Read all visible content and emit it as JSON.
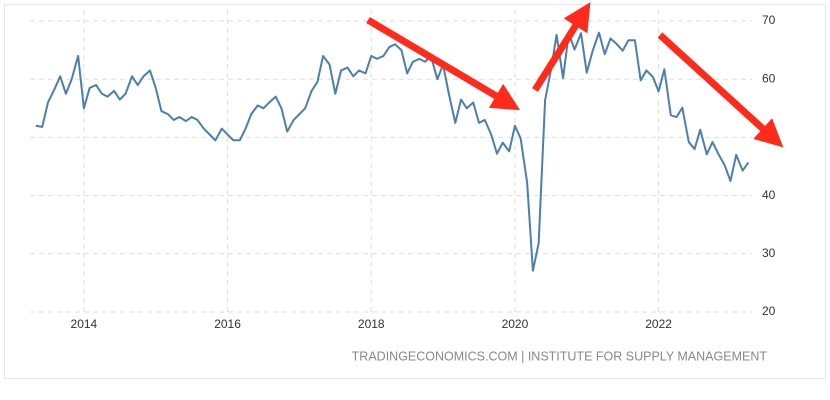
{
  "chart_data": {
    "type": "line",
    "source": "TRADINGECONOMICS.COM | INSTITUTE FOR SUPPLY MANAGEMENT",
    "x": [
      2013.33,
      2013.42,
      2013.5,
      2013.58,
      2013.67,
      2013.75,
      2013.83,
      2013.92,
      2014,
      2014.08,
      2014.17,
      2014.25,
      2014.33,
      2014.42,
      2014.5,
      2014.58,
      2014.67,
      2014.75,
      2014.83,
      2014.92,
      2015,
      2015.08,
      2015.17,
      2015.25,
      2015.33,
      2015.42,
      2015.5,
      2015.58,
      2015.67,
      2015.75,
      2015.83,
      2015.92,
      2016,
      2016.08,
      2016.17,
      2016.25,
      2016.33,
      2016.42,
      2016.5,
      2016.58,
      2016.67,
      2016.75,
      2016.83,
      2016.92,
      2017,
      2017.08,
      2017.17,
      2017.25,
      2017.33,
      2017.42,
      2017.5,
      2017.58,
      2017.67,
      2017.75,
      2017.83,
      2017.92,
      2018,
      2018.08,
      2018.17,
      2018.25,
      2018.33,
      2018.42,
      2018.5,
      2018.58,
      2018.67,
      2018.75,
      2018.83,
      2018.92,
      2019,
      2019.08,
      2019.17,
      2019.25,
      2019.33,
      2019.42,
      2019.5,
      2019.58,
      2019.67,
      2019.75,
      2019.83,
      2019.92,
      2020,
      2020.08,
      2020.17,
      2020.25,
      2020.33,
      2020.42,
      2020.5,
      2020.58,
      2020.67,
      2020.75,
      2020.83,
      2020.92,
      2021,
      2021.08,
      2021.17,
      2021.25,
      2021.33,
      2021.42,
      2021.5,
      2021.58,
      2021.67,
      2021.75,
      2021.83,
      2021.92,
      2022,
      2022.08,
      2022.17,
      2022.25,
      2022.33,
      2022.42,
      2022.5,
      2022.58,
      2022.67,
      2022.75,
      2022.83,
      2022.92,
      2023,
      2023.08,
      2023.17,
      2023.25
    ],
    "series": [
      {
        "color": "#4a7fb0",
        "values": [
          52,
          51.8,
          56,
          58,
          60.5,
          57.5,
          60,
          64,
          55,
          58.5,
          59,
          57.5,
          57,
          58,
          56.5,
          57.5,
          60.5,
          59,
          60.5,
          61.5,
          58.5,
          54.5,
          54,
          53,
          53.5,
          52.8,
          53.5,
          53,
          51.5,
          50.5,
          49.5,
          51.5,
          50.5,
          49.5,
          49.5,
          51.5,
          54,
          55.5,
          55,
          56,
          57,
          55,
          51,
          53,
          54,
          55,
          58,
          59.5,
          64,
          62.5,
          57.5,
          61.5,
          62,
          60.5,
          61.5,
          61,
          64,
          63.5,
          64,
          65.5,
          66,
          65,
          61,
          63,
          63.5,
          63,
          64,
          60,
          62.5,
          57.5,
          52.5,
          56.5,
          55,
          56,
          52.5,
          53,
          50.5,
          47.2,
          49.1,
          47.6,
          52,
          49.8,
          42.2,
          27.1,
          31.8,
          56.4,
          61.5,
          67.6,
          60.2,
          67.9,
          65.1,
          67.9,
          61.1,
          64.8,
          68,
          64.3,
          67,
          66,
          64.9,
          66.7,
          66.7,
          59.8,
          61.5,
          60.4,
          57.9,
          61.7,
          53.8,
          53.5,
          55.1,
          49.2,
          48,
          51.3,
          47.1,
          49.2,
          47.2,
          45.2,
          42.5,
          47,
          44.3,
          45.7
        ]
      }
    ],
    "xlim": [
      2013.25,
      2023.3
    ],
    "xticks": [
      2014,
      2016,
      2018,
      2020,
      2022
    ],
    "ylim": [
      20,
      70
    ],
    "yticks": [
      20,
      30,
      40,
      50,
      60,
      70
    ],
    "grid": true
  }
}
